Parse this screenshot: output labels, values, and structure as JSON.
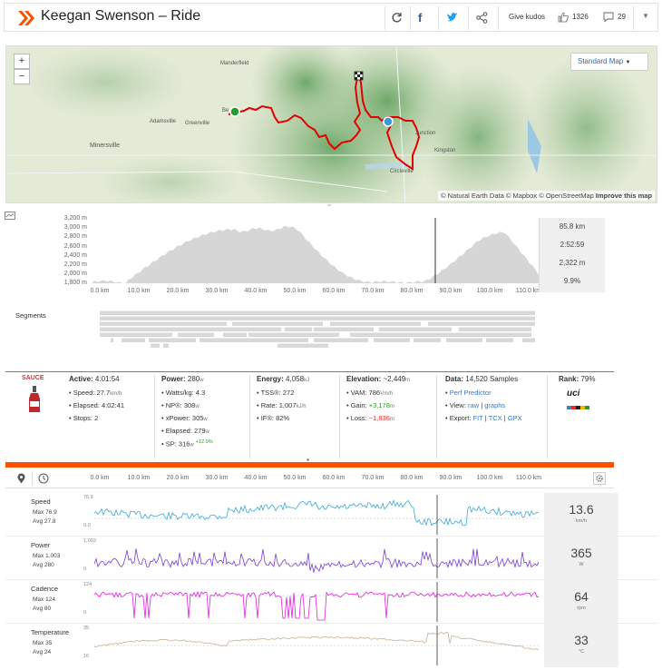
{
  "header": {
    "title": "Keegan Swenson – Ride",
    "kudos_label": "Give kudos",
    "kudos_count": "1326",
    "comment_count": "29",
    "brand_color": "#fc5200"
  },
  "map": {
    "zoom_in": "+",
    "zoom_out": "−",
    "style_select": "Standard Map",
    "attribution": "© Natural Earth Data © Mapbox © OpenStreetMap",
    "improve_link": "Improve this map",
    "towns": [
      "Manderfield",
      "Adamsville",
      "Greenville",
      "Minersville",
      "Junction",
      "Kingston",
      "Circleville",
      "Be"
    ]
  },
  "elevation": {
    "y_ticks": [
      "3,200 m",
      "3,000 m",
      "2,800 m",
      "2,600 m",
      "2,400 m",
      "2,200 m",
      "2,000 m",
      "1,800 m"
    ],
    "x_ticks": [
      "0.0 km",
      "10.0 km",
      "20.0 km",
      "30.0 km",
      "40.0 km",
      "50.0 km",
      "60.0 km",
      "70.0 km",
      "80.0 km",
      "90.0 km",
      "100.0 km",
      "110.0 km"
    ],
    "readout": [
      "85.8 km",
      "2:52:59",
      "2,322 m",
      "9.9%"
    ]
  },
  "segments": {
    "label": "Segments"
  },
  "stats": {
    "sauce_label": "SAUCE",
    "active": {
      "label": "Active:",
      "value": "4:01:54",
      "speed_label": "Speed:",
      "speed": "27.7",
      "speed_unit": "km/h",
      "elapsed_label": "Elapsed:",
      "elapsed": "4:02:41",
      "stops_label": "Stops:",
      "stops": "2"
    },
    "power": {
      "label": "Power:",
      "value": "280",
      "unit": "w",
      "wkg_label": "Watts/kg:",
      "wkg": "4.3",
      "np_label": "NP®:",
      "np": "308",
      "xp_label": "xPower:",
      "xp": "305",
      "elapsed_label": "Elapsed:",
      "elapsed": "279",
      "sp_label": "SP:",
      "sp": "316",
      "sp_delta": "+12.9%"
    },
    "energy": {
      "label": "Energy:",
      "value": "4,058",
      "unit": "kJ",
      "tss_label": "TSS®:",
      "tss": "272",
      "rate_label": "Rate:",
      "rate": "1,007",
      "rate_unit": "kJ/h",
      "if_label": "IF®:",
      "if": "82%"
    },
    "elevation": {
      "label": "Elevation:",
      "value": "~2,449",
      "unit": "m",
      "vam_label": "VAM:",
      "vam": "786",
      "vam_unit": "Vm/h",
      "gain_label": "Gain:",
      "gain": "+3,178",
      "loss_label": "Loss:",
      "loss": "−1,836",
      "gl_unit": "m"
    },
    "data": {
      "label": "Data:",
      "value": "14,520 Samples",
      "predictor": "Perf Predictor",
      "view_label": "View:",
      "view_raw": "raw",
      "view_graphs": "graphs",
      "export_label": "Export:",
      "fit": "FIT",
      "tcx": "TCX",
      "gpx": "GPX"
    },
    "rank": {
      "label": "Rank:",
      "value": "79%",
      "badge": "uci"
    }
  },
  "streams": {
    "x_ticks": [
      "0.0 km",
      "10.0 km",
      "20.0 km",
      "30.0 km",
      "40.0 km",
      "50.0 km",
      "60.0 km",
      "70.0 km",
      "80.0 km",
      "90.0 km",
      "100.0 km",
      "110.0 km"
    ],
    "speed": {
      "name": "Speed",
      "max": "Max 76.9",
      "avg": "Avg 27.8",
      "ymax": "76.9",
      "ymin": "0.0",
      "current": "13.6",
      "unit": "km/h",
      "color": "#3aa8d8"
    },
    "power": {
      "name": "Power",
      "max": "Max 1,003",
      "avg": "Avg 280",
      "ymax": "1,003",
      "ymin": "0",
      "current": "365",
      "unit": "W",
      "color": "#7a3fd6"
    },
    "cadence": {
      "name": "Cadence",
      "max": "Max 124",
      "avg": "Avg 80",
      "ymax": "124",
      "ymin": "0",
      "current": "64",
      "unit": "rpm",
      "color": "#e020e0"
    },
    "temperature": {
      "name": "Temperature",
      "max": "Max 35",
      "avg": "Avg 24",
      "ymax": "35",
      "ymin": "16",
      "current": "33",
      "unit": "°C",
      "color": "#c8b090"
    }
  }
}
